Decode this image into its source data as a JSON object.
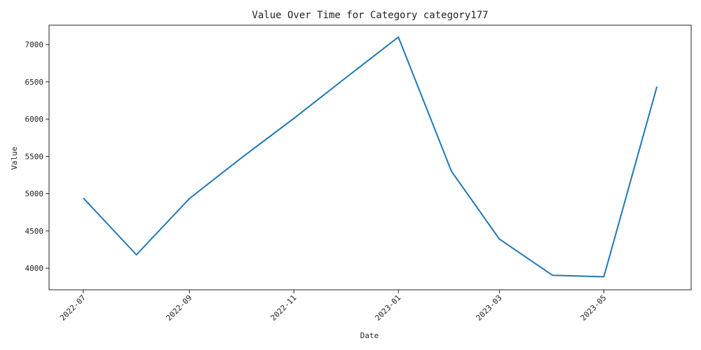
{
  "chart_data": {
    "type": "line",
    "title": "Value Over Time for Category category177",
    "xlabel": "Date",
    "ylabel": "Value",
    "x": [
      "2022-07-01",
      "2022-08-01",
      "2022-09-01",
      "2022-10-01",
      "2022-11-01",
      "2022-12-01",
      "2023-01-01",
      "2023-02-01",
      "2023-03-01",
      "2023-04-01",
      "2023-05-01",
      "2023-06-01"
    ],
    "series": [
      {
        "values": [
          4940,
          4180,
          4935,
          5475,
          6010,
          6550,
          7100,
          5300,
          4390,
          3905,
          3885,
          6435
        ],
        "color": "#1f77b4"
      }
    ],
    "xlim": [
      "2022-06-11",
      "2023-06-21"
    ],
    "ylim": [
      3710,
      7260
    ],
    "x_ticks": [
      {
        "date": "2022-07-01",
        "label": "2022-07"
      },
      {
        "date": "2022-09-01",
        "label": "2022-09"
      },
      {
        "date": "2022-11-01",
        "label": "2022-11"
      },
      {
        "date": "2023-01-01",
        "label": "2023-01"
      },
      {
        "date": "2023-03-01",
        "label": "2023-03"
      },
      {
        "date": "2023-05-01",
        "label": "2023-05"
      }
    ],
    "y_ticks": [
      4000,
      4500,
      5000,
      5500,
      6000,
      6500,
      7000
    ],
    "grid": false,
    "legend": "none"
  }
}
